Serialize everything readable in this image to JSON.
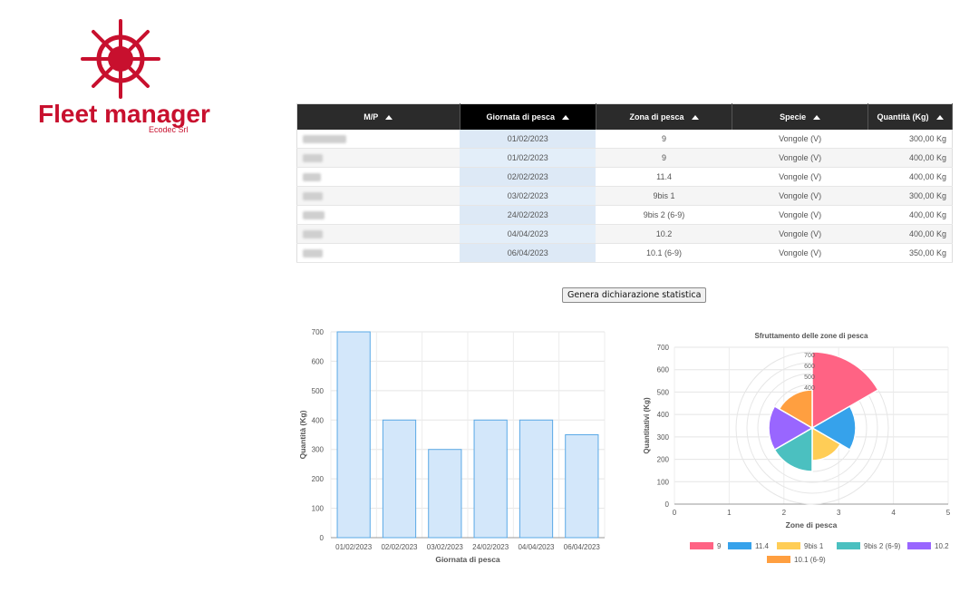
{
  "brand": {
    "name": "Fleet manager",
    "sub": "Ecodec Srl"
  },
  "table": {
    "headers": [
      "M/P",
      "Giornata di pesca",
      "Zona di pesca",
      "Specie",
      "Quantità (Kg)"
    ],
    "rows": [
      {
        "date": "01/02/2023",
        "zone": "9",
        "species": "Vongole (V)",
        "qty": "300,00 Kg"
      },
      {
        "date": "01/02/2023",
        "zone": "9",
        "species": "Vongole (V)",
        "qty": "400,00 Kg"
      },
      {
        "date": "02/02/2023",
        "zone": "11.4",
        "species": "Vongole (V)",
        "qty": "400,00 Kg"
      },
      {
        "date": "03/02/2023",
        "zone": "9bis 1",
        "species": "Vongole (V)",
        "qty": "300,00 Kg"
      },
      {
        "date": "24/02/2023",
        "zone": "9bis 2 (6-9)",
        "species": "Vongole (V)",
        "qty": "400,00 Kg"
      },
      {
        "date": "04/04/2023",
        "zone": "10.2",
        "species": "Vongole (V)",
        "qty": "400,00 Kg"
      },
      {
        "date": "06/04/2023",
        "zone": "10.1 (6-9)",
        "species": "Vongole (V)",
        "qty": "350,00 Kg"
      }
    ]
  },
  "generate_button": "Genera dichiarazione statistica",
  "colors": {
    "brand": "#c8102e",
    "bar_fill": "#d3e7fa",
    "bar_stroke": "#5aa9e6"
  },
  "chart_data": [
    {
      "type": "bar",
      "title": "",
      "categories": [
        "01/02/2023",
        "02/02/2023",
        "03/02/2023",
        "24/02/2023",
        "04/04/2023",
        "06/04/2023"
      ],
      "values": [
        700,
        400,
        300,
        400,
        400,
        350
      ],
      "xlabel": "Giornata di pesca",
      "ylabel": "Quantità (Kg)",
      "ylim": [
        0,
        700
      ],
      "yticks": [
        0,
        100,
        200,
        300,
        400,
        500,
        600,
        700
      ],
      "grid": true
    },
    {
      "type": "polarArea",
      "title": "Sfruttamento delle zone di pesca",
      "xlabel": "Zone di pesca",
      "ylabel": "Quantitativi (Kg)",
      "xticks": [
        0,
        1,
        2,
        3,
        4,
        5
      ],
      "yticks": [
        0,
        100,
        200,
        300,
        400,
        500,
        600,
        700
      ],
      "rticks": [
        400,
        500,
        600,
        700
      ],
      "rmax": 700,
      "legend_position": "bottom",
      "slices": [
        {
          "label": "9",
          "value": 700,
          "color": "#ff6384"
        },
        {
          "label": "11.4",
          "value": 400,
          "color": "#36a2eb"
        },
        {
          "label": "9bis 1",
          "value": 300,
          "color": "#ffcd56"
        },
        {
          "label": "9bis 2 (6-9)",
          "value": 400,
          "color": "#4bc0c0"
        },
        {
          "label": "10.2",
          "value": 400,
          "color": "#9966ff"
        },
        {
          "label": "10.1 (6-9)",
          "value": 350,
          "color": "#ff9f40"
        }
      ]
    }
  ]
}
